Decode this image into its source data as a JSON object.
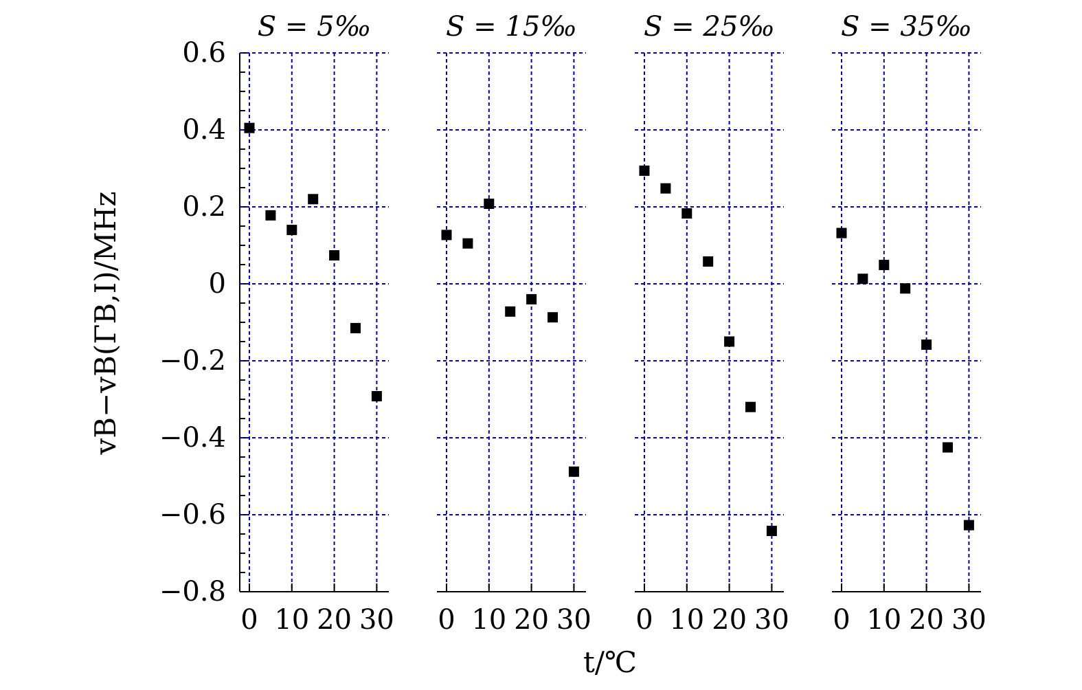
{
  "chart_data": {
    "type": "scatter",
    "xlabel": "t/℃",
    "ylabel": "vB−vB(ΓB,I)/MHz",
    "ylim": [
      -0.8,
      0.6
    ],
    "xlim": [
      -2.5,
      32.5
    ],
    "yticks": [
      0.6,
      0.4,
      0.2,
      0,
      -0.2,
      -0.4,
      -0.6,
      -0.8
    ],
    "ytick_labels": [
      "0.6",
      "0.4",
      "0.2",
      "0",
      "−0.2",
      "−0.4",
      "−0.6",
      "−0.8"
    ],
    "xticks": [
      0,
      10,
      20,
      30
    ],
    "xtick_labels": [
      "0",
      "10",
      "20",
      "30"
    ],
    "grid": true,
    "colors": {
      "grid": "#0000b8",
      "marker": "#000000",
      "axis": "#000000"
    },
    "x": [
      0,
      5,
      10,
      15,
      20,
      25,
      30
    ],
    "panels": [
      {
        "title": "S = 5‰",
        "values": [
          0.405,
          0.178,
          0.14,
          0.22,
          0.074,
          -0.115,
          -0.292
        ]
      },
      {
        "title": "S = 15‰",
        "values": [
          0.127,
          0.105,
          0.208,
          -0.072,
          -0.04,
          -0.087,
          -0.488
        ]
      },
      {
        "title": "S = 25‰",
        "values": [
          0.294,
          0.248,
          0.183,
          0.058,
          -0.15,
          -0.32,
          -0.642
        ]
      },
      {
        "title": "S = 35‰",
        "values": [
          0.132,
          0.013,
          0.049,
          -0.012,
          -0.158,
          -0.425,
          -0.627
        ]
      }
    ]
  }
}
